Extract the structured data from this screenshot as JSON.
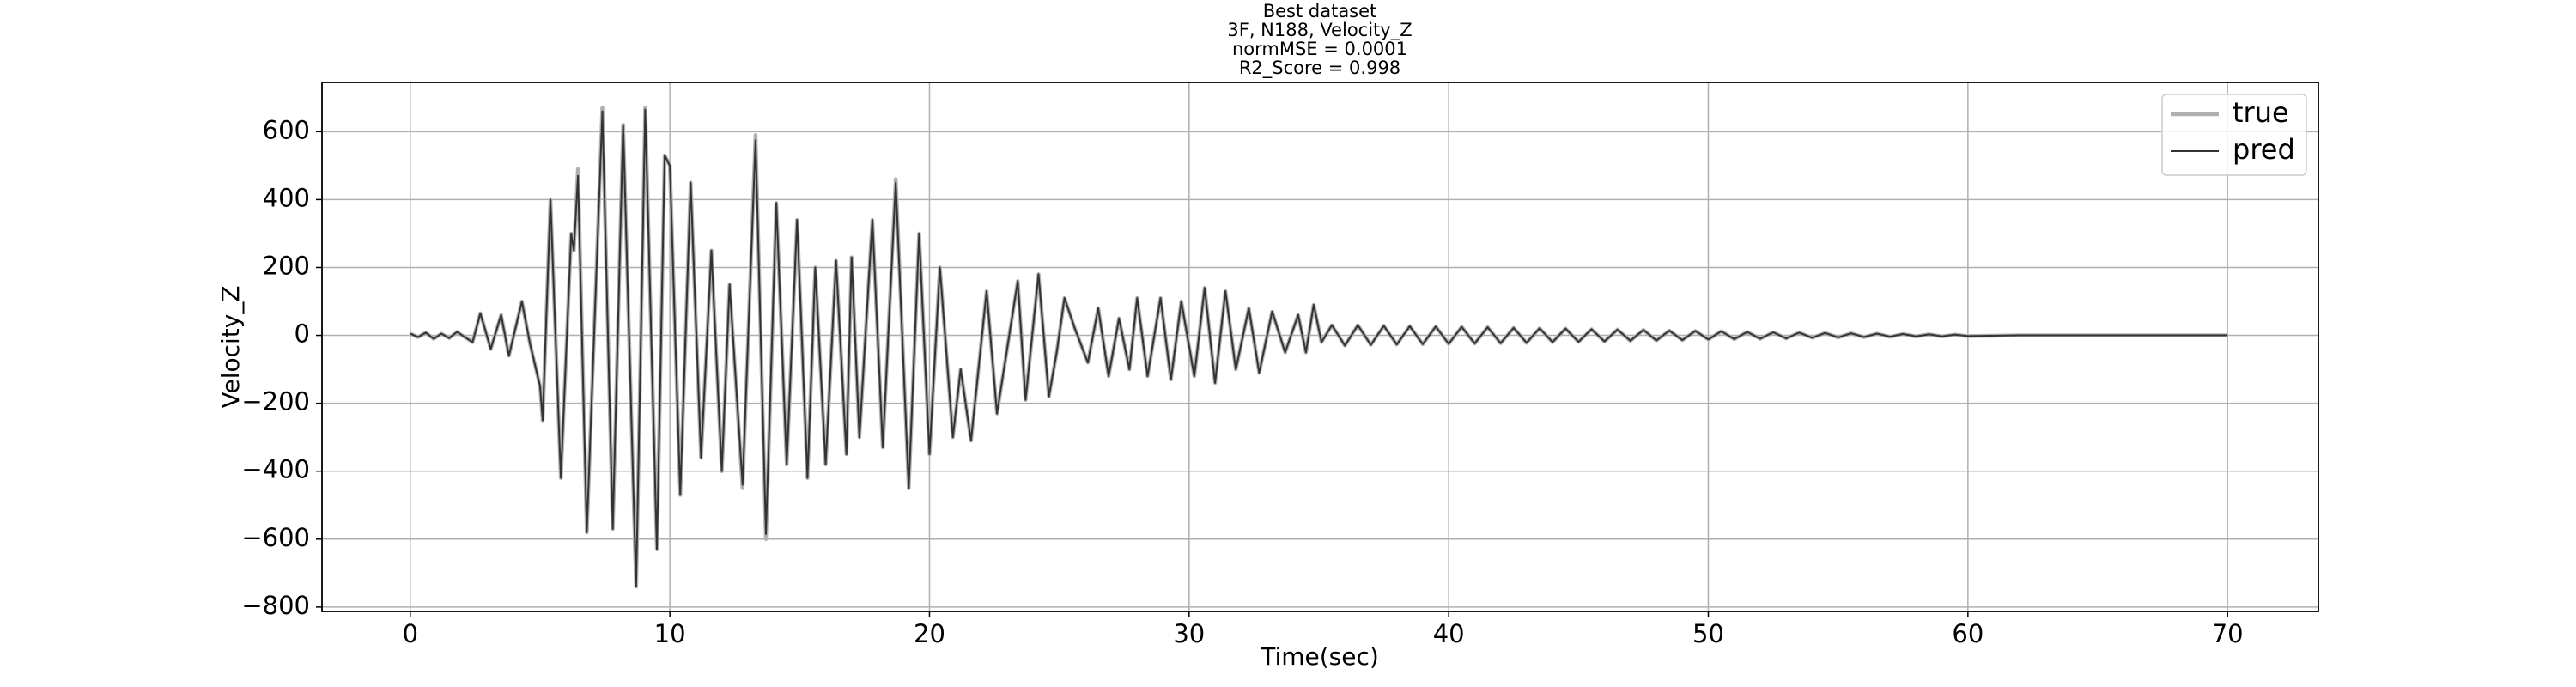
{
  "chart_data": {
    "type": "line",
    "title": [
      "Best dataset",
      "3F, N188, Velocity_Z",
      "normMSE = 0.0001",
      "R2_Score = 0.998"
    ],
    "xlabel": "Time(sec)",
    "ylabel": "Velocity_Z",
    "x": [
      0,
      0.3,
      0.6,
      0.9,
      1.2,
      1.5,
      1.8,
      2.1,
      2.4,
      2.7,
      3.1,
      3.5,
      3.8,
      4.3,
      4.6,
      5.0,
      5.1,
      5.4,
      5.8,
      6.2,
      6.3,
      6.46,
      6.8,
      7.4,
      7.8,
      8.2,
      8.7,
      9.05,
      9.5,
      9.8,
      10.0,
      10.4,
      10.8,
      11.2,
      11.6,
      12.0,
      12.3,
      12.8,
      13.3,
      13.7,
      14.1,
      14.5,
      14.9,
      15.3,
      15.6,
      16.0,
      16.4,
      16.8,
      17.0,
      17.3,
      17.8,
      18.2,
      18.7,
      19.2,
      19.6,
      20.0,
      20.4,
      20.9,
      21.2,
      21.6,
      22.2,
      22.6,
      23.4,
      23.7,
      24.2,
      24.6,
      24.9,
      25.2,
      25.6,
      26.1,
      26.5,
      26.9,
      27.3,
      27.7,
      28.0,
      28.4,
      28.9,
      29.3,
      29.7,
      30.2,
      30.6,
      31.0,
      31.4,
      31.8,
      32.3,
      32.7,
      33.2,
      33.7,
      34.2,
      34.5,
      34.8,
      35.1,
      35.5,
      36,
      36.5,
      37,
      37.5,
      38,
      38.5,
      39,
      39.5,
      40,
      40.5,
      41,
      41.5,
      42,
      42.5,
      43,
      43.5,
      44,
      44.5,
      45,
      45.5,
      46,
      46.5,
      47,
      47.5,
      48,
      48.5,
      49,
      49.5,
      50,
      50.5,
      51,
      51.5,
      52,
      52.5,
      53,
      53.5,
      54,
      54.5,
      55,
      55.5,
      56,
      56.5,
      57,
      57.5,
      58,
      58.5,
      59,
      59.5,
      60,
      62,
      65,
      70
    ],
    "series": [
      {
        "name": "true",
        "color": "#b0b0b0",
        "width": 4.5,
        "values": [
          5,
          -5,
          8,
          -10,
          5,
          -8,
          10,
          -5,
          -20,
          65,
          -40,
          60,
          -60,
          100,
          -20,
          -150,
          -250,
          400,
          -420,
          300,
          250,
          490,
          -580,
          670,
          -570,
          620,
          -740,
          670,
          -630,
          530,
          500,
          -470,
          450,
          -360,
          250,
          -400,
          150,
          -450,
          590,
          -600,
          390,
          -380,
          340,
          -420,
          200,
          -380,
          220,
          -350,
          230,
          -300,
          340,
          -330,
          460,
          -450,
          300,
          -350,
          200,
          -300,
          -100,
          -310,
          130,
          -230,
          160,
          -190,
          180,
          -180,
          -50,
          110,
          20,
          -80,
          80,
          -120,
          50,
          -100,
          110,
          -120,
          110,
          -130,
          100,
          -120,
          140,
          -140,
          130,
          -100,
          80,
          -110,
          70,
          -50,
          60,
          -50,
          90,
          -20,
          30,
          -30,
          30,
          -28,
          28,
          -27,
          27,
          -26,
          26,
          -25,
          25,
          -24,
          24,
          -23,
          22,
          -22,
          21,
          -20,
          20,
          -19,
          18,
          -18,
          17,
          -16,
          16,
          -15,
          14,
          -14,
          13,
          -12,
          12,
          -11,
          10,
          -10,
          9,
          -9,
          8,
          -7,
          7,
          -6,
          6,
          -5,
          5,
          -4,
          4,
          -3,
          3,
          -3,
          2,
          -2,
          0,
          0,
          0
        ]
      },
      {
        "name": "pred",
        "color": "#333333",
        "width": 2,
        "values": [
          5,
          -5,
          8,
          -10,
          5,
          -8,
          10,
          -5,
          -20,
          65,
          -40,
          60,
          -60,
          100,
          -20,
          -150,
          -250,
          400,
          -420,
          300,
          250,
          470,
          -580,
          660,
          -570,
          620,
          -740,
          665,
          -630,
          530,
          500,
          -470,
          450,
          -360,
          250,
          -400,
          150,
          -440,
          575,
          -585,
          390,
          -380,
          340,
          -420,
          200,
          -380,
          220,
          -350,
          230,
          -300,
          340,
          -330,
          450,
          -450,
          300,
          -350,
          200,
          -300,
          -100,
          -310,
          130,
          -230,
          160,
          -190,
          180,
          -180,
          -50,
          110,
          20,
          -80,
          80,
          -120,
          50,
          -100,
          110,
          -120,
          110,
          -130,
          100,
          -120,
          140,
          -140,
          130,
          -100,
          80,
          -110,
          70,
          -50,
          60,
          -50,
          90,
          -20,
          30,
          -30,
          30,
          -28,
          28,
          -27,
          27,
          -26,
          26,
          -25,
          25,
          -24,
          24,
          -23,
          22,
          -22,
          21,
          -20,
          20,
          -19,
          18,
          -18,
          17,
          -16,
          16,
          -15,
          14,
          -14,
          13,
          -12,
          12,
          -11,
          10,
          -10,
          9,
          -9,
          8,
          -7,
          7,
          -6,
          6,
          -5,
          5,
          -4,
          4,
          -3,
          3,
          -3,
          2,
          -2,
          0,
          0,
          0
        ]
      }
    ],
    "xlim": [
      -3.4,
      73.5
    ],
    "ylim": [
      -813,
      745
    ],
    "xticks": [
      0,
      10,
      20,
      30,
      40,
      50,
      60,
      70
    ],
    "yticks": [
      {
        "value": -800,
        "label": "−800"
      },
      {
        "value": -600,
        "label": "−600"
      },
      {
        "value": -400,
        "label": "−400"
      },
      {
        "value": -200,
        "label": "−200"
      },
      0,
      200,
      400,
      600
    ],
    "grid": true,
    "legend": "upper right"
  }
}
